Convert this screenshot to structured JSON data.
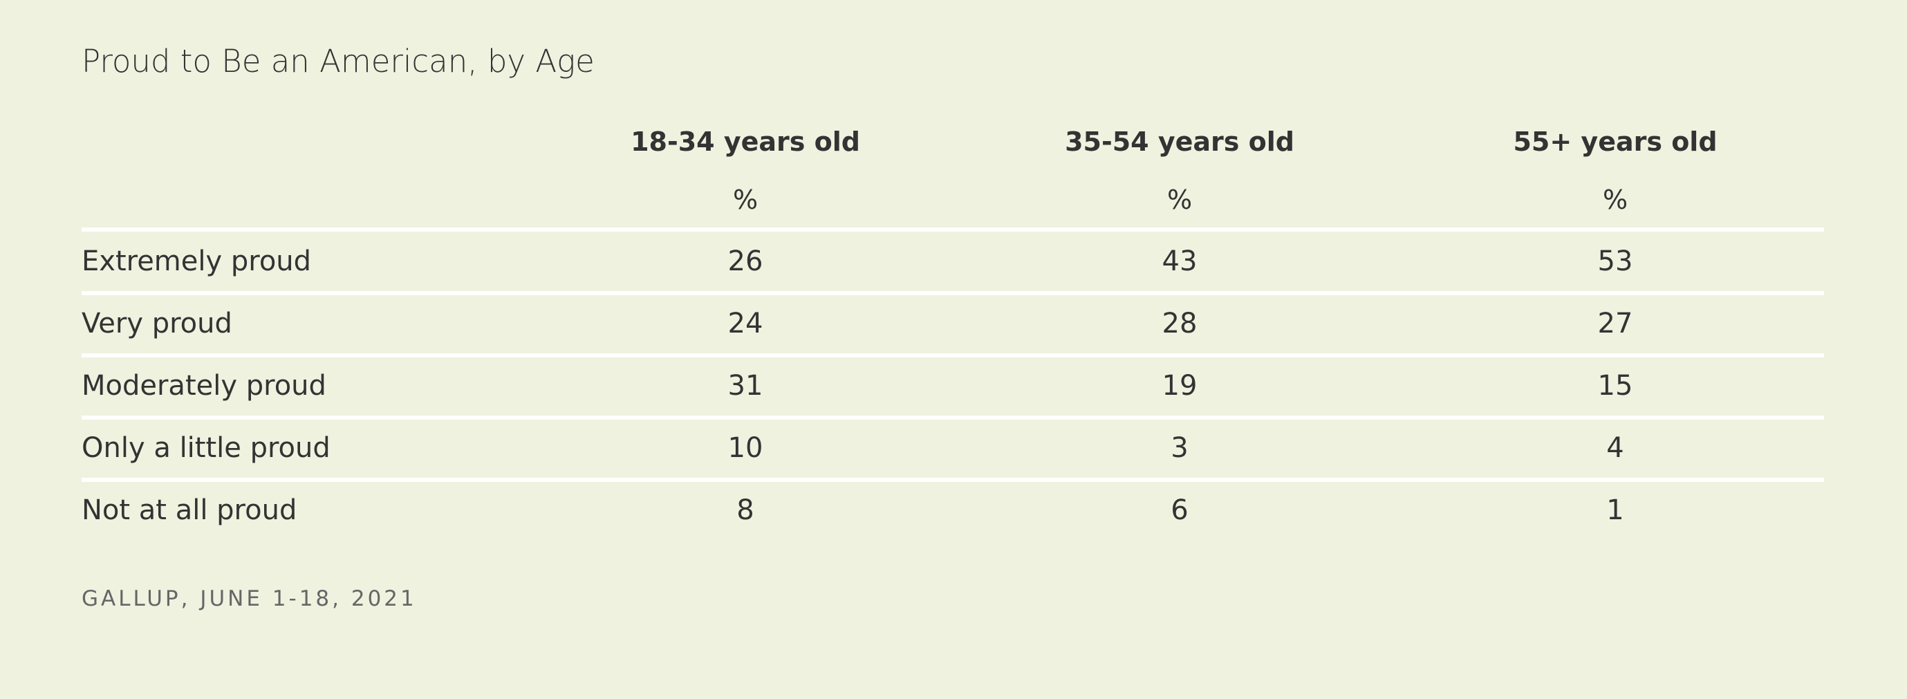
{
  "header": {
    "title": "Proud to Be an American, by Age"
  },
  "table": {
    "columns": [
      "18-34 years old",
      "35-54 years old",
      "55+ years old"
    ],
    "units": [
      "%",
      "%",
      "%"
    ],
    "rows": [
      [
        "Extremely proud",
        26,
        43,
        53
      ],
      [
        "Very proud",
        24,
        28,
        27
      ],
      [
        "Moderately proud",
        31,
        19,
        15
      ],
      [
        "Only a little proud",
        10,
        3,
        4
      ],
      [
        "Not at all proud",
        8,
        6,
        1
      ]
    ]
  },
  "footer": {
    "source": "GALLUP, JUNE 1-18, 2021"
  }
}
